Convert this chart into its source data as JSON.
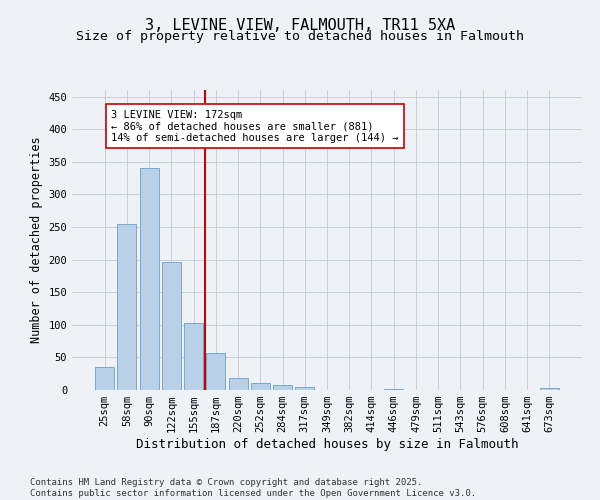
{
  "title": "3, LEVINE VIEW, FALMOUTH, TR11 5XA",
  "subtitle": "Size of property relative to detached houses in Falmouth",
  "xlabel": "Distribution of detached houses by size in Falmouth",
  "ylabel": "Number of detached properties",
  "categories": [
    "25sqm",
    "58sqm",
    "90sqm",
    "122sqm",
    "155sqm",
    "187sqm",
    "220sqm",
    "252sqm",
    "284sqm",
    "317sqm",
    "349sqm",
    "382sqm",
    "414sqm",
    "446sqm",
    "479sqm",
    "511sqm",
    "543sqm",
    "576sqm",
    "608sqm",
    "641sqm",
    "673sqm"
  ],
  "values": [
    35,
    255,
    340,
    197,
    103,
    57,
    18,
    10,
    7,
    5,
    0,
    0,
    0,
    1,
    0,
    0,
    0,
    0,
    0,
    0,
    3
  ],
  "bar_color": "#b8d0e8",
  "bar_edge_color": "#6aa0c8",
  "vline_index": 4,
  "vline_color": "#cc0000",
  "annotation_line1": "3 LEVINE VIEW: 172sqm",
  "annotation_line2": "← 86% of detached houses are smaller (881)",
  "annotation_line3": "14% of semi-detached houses are larger (144) →",
  "annotation_box_color": "#ffffff",
  "annotation_box_edge": "#cc0000",
  "annotation_fontsize": 7.5,
  "title_fontsize": 11,
  "subtitle_fontsize": 9.5,
  "xlabel_fontsize": 9,
  "ylabel_fontsize": 8.5,
  "tick_fontsize": 7.5,
  "footer_text": "Contains HM Land Registry data © Crown copyright and database right 2025.\nContains public sector information licensed under the Open Government Licence v3.0.",
  "footer_fontsize": 6.5,
  "background_color": "#eef2f7",
  "ylim": [
    0,
    460
  ],
  "yticks": [
    0,
    50,
    100,
    150,
    200,
    250,
    300,
    350,
    400,
    450
  ]
}
